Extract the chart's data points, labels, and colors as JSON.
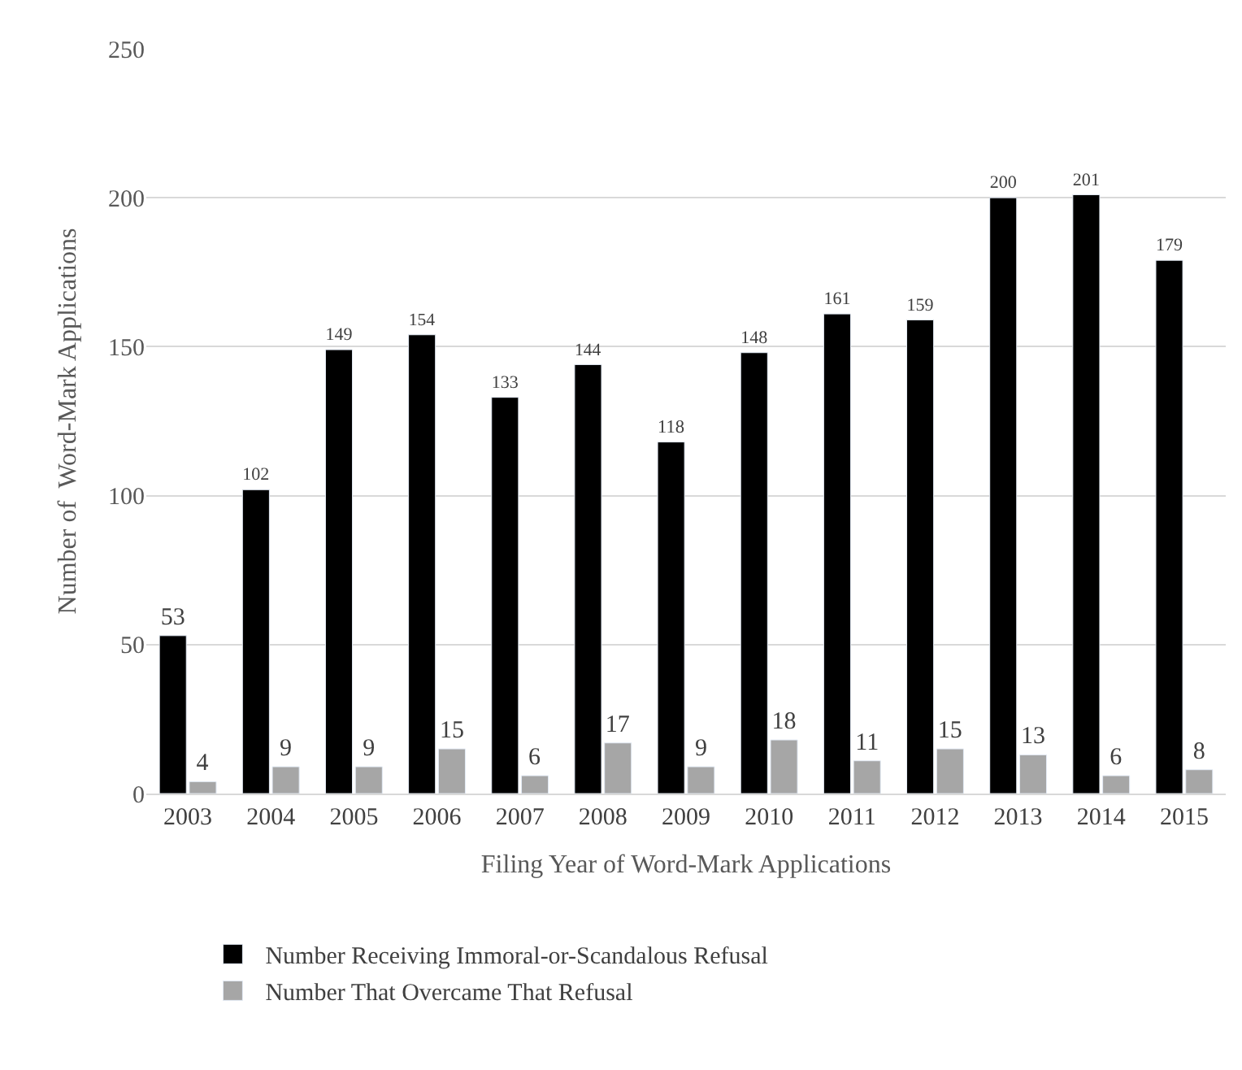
{
  "chart_data": {
    "type": "bar",
    "xlabel": "Filing Year of Word-Mark Applications",
    "ylabel": "Number of  Word-Mark Applications",
    "categories": [
      "2003",
      "2004",
      "2005",
      "2006",
      "2007",
      "2008",
      "2009",
      "2010",
      "2011",
      "2012",
      "2013",
      "2014",
      "2015"
    ],
    "series": [
      {
        "name": "Number Receiving Immoral-or-Scandalous Refusal",
        "color": "#000000",
        "values": [
          53,
          102,
          149,
          154,
          133,
          144,
          118,
          148,
          161,
          159,
          200,
          201,
          179
        ]
      },
      {
        "name": "Number That Overcame That Refusal",
        "color": "#a6a6a6",
        "values": [
          4,
          9,
          9,
          15,
          6,
          17,
          9,
          18,
          11,
          15,
          13,
          6,
          8
        ]
      }
    ],
    "ylim": [
      0,
      250
    ],
    "yticks": [
      0,
      50,
      100,
      150,
      200,
      250
    ],
    "grid": "y",
    "legend": "bottom",
    "data_labels": true
  }
}
